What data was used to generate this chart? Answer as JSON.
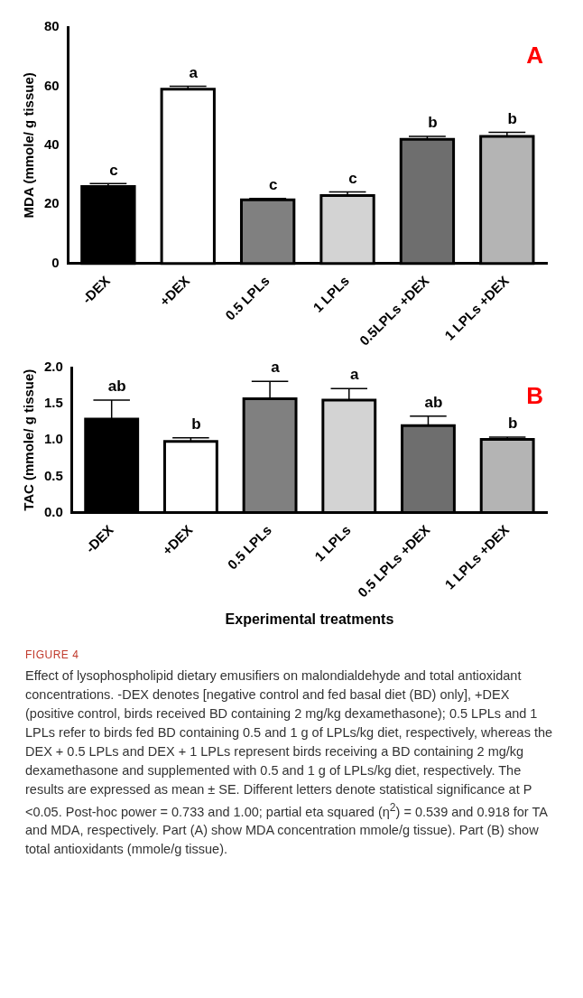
{
  "chart_data": [
    {
      "type": "bar",
      "title": "A",
      "ylabel": "MDA (mmole/ g tissue)",
      "categories": [
        "-DEX",
        "+DEX",
        "0.5 LPLs",
        "1 LPLs",
        "0.5LPLs +DEX",
        "1 LPLs +DEX"
      ],
      "values": [
        26,
        59,
        21.5,
        23,
        42,
        43
      ],
      "colors": [
        "#000000",
        "#ffffff",
        "#808080",
        "#d3d3d3",
        "#6e6e6e",
        "#b4b4b4"
      ],
      "errors": [
        [
          26,
          27
        ],
        [
          59,
          60
        ],
        [
          21.5,
          22
        ],
        [
          23,
          24.2
        ],
        [
          42,
          43
        ],
        [
          43,
          44.4
        ]
      ],
      "ylim": [
        0,
        80
      ],
      "yticks": [
        0,
        20,
        40,
        60,
        80
      ],
      "grid": false,
      "legend": false,
      "annotations": [
        {
          "text": "c",
          "x": "-DEX",
          "y": 27
        },
        {
          "text": "a",
          "x": "+DEX",
          "y": 60
        },
        {
          "text": "c",
          "x": "0.5 LPLs",
          "y": 22
        },
        {
          "text": "c",
          "x": "1 LPLs",
          "y": 24.2
        },
        {
          "text": "b",
          "x": "0.5LPLs +DEX",
          "y": 43
        },
        {
          "text": "b",
          "x": "1 LPLs +DEX",
          "y": 44.4
        }
      ]
    },
    {
      "type": "bar",
      "title": "B",
      "ylabel": "TAC (mmole/ g tissue)",
      "xlabel": "Experimental treatments",
      "categories": [
        "-DEX",
        "+DEX",
        "0.5 LPLs",
        "1 LPLs",
        "0.5 LPLs +DEX",
        "1 LPLs +DEX"
      ],
      "values": [
        1.29,
        0.98,
        1.57,
        1.55,
        1.2,
        1.01
      ],
      "colors": [
        "#000000",
        "#ffffff",
        "#808080",
        "#d3d3d3",
        "#6e6e6e",
        "#b4b4b4"
      ],
      "errors": [
        [
          1.29,
          1.55
        ],
        [
          0.98,
          1.03
        ],
        [
          1.57,
          1.81
        ],
        [
          1.55,
          1.71
        ],
        [
          1.2,
          1.33
        ],
        [
          1.01,
          1.04
        ]
      ],
      "ylim": [
        0,
        2
      ],
      "yticks": [
        {
          "value": 0,
          "label": "0.0"
        },
        {
          "value": 0.5,
          "label": "0.5"
        },
        {
          "value": 1,
          "label": "1.0"
        },
        {
          "value": 1.5,
          "label": "1.5"
        },
        {
          "value": 2,
          "label": "2.0"
        }
      ],
      "grid": false,
      "legend": false,
      "annotations": [
        {
          "text": "ab",
          "x": "-DEX",
          "y": 1.55
        },
        {
          "text": "b",
          "x": "+DEX",
          "y": 1.03
        },
        {
          "text": "a",
          "x": "0.5 LPLs",
          "y": 1.81
        },
        {
          "text": "a",
          "x": "1 LPLs",
          "y": 1.71
        },
        {
          "text": "ab",
          "x": "0.5 LPLs +DEX",
          "y": 1.33
        },
        {
          "text": "b",
          "x": "1 LPLs +DEX",
          "y": 1.04
        },
        "FIGURE 4",
        "Effect of lysophospholipid dietary emusifiers on malondialdehyde and total antioxidant concentrations. -DEX denotes [negative control and fed basal diet (BD) only], +DEX (positive control, birds received BD containing 2 mg/kg dexamethasone); 0.5 LPLs and 1 LPLs refer to birds fed BD containing 0.5 and 1 g of LPLs/kg diet, respectively, whereas the DEX + 0.5 LPLs and DEX + 1 LPLs represent birds receiving a BD containing 2 mg/kg dexamethasone and supplemented with 0.5 and 1 g of LPLs/kg diet, respectively. The results are expressed as mean ± SE. Different letters denote statistical significance at P <0.05. Post-hoc power = 0.733 and 1.00; partial eta squared (η$^{2}$) = 0.539 and 0.918 for TA and MDA, respectively. Part (A) show MDA concentration mmole/g tissue). Part (B) show total antioxidants (mmole/g tissue)."
      ]
    }
  ]
}
